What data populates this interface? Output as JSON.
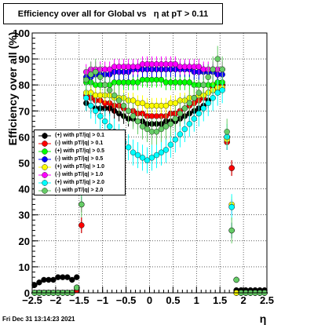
{
  "chart_data": {
    "type": "scatter",
    "title_prefix": "Efficiency over all for Global vs",
    "title_symbol": "η",
    "title_suffix": "at pT > 0.11",
    "xlabel": "η",
    "ylabel": "Efficiency over all (%)",
    "xlim": [
      -2.5,
      2.5
    ],
    "ylim": [
      0,
      100
    ],
    "xticks": [
      "−2.5",
      "−2",
      "−1.5",
      "−1",
      "−0.5",
      "0",
      "0.5",
      "1",
      "1.5",
      "2",
      "2.5"
    ],
    "yticks": [
      "0",
      "10",
      "20",
      "30",
      "40",
      "50",
      "60",
      "70",
      "80",
      "90",
      "100"
    ],
    "grid": true,
    "legend_position": "left-middle",
    "series": [
      {
        "name": "(+) with pT/|q| > 0.1",
        "color": "#000000",
        "y": [
          3,
          4,
          5,
          5,
          5,
          6,
          6,
          6,
          5,
          6,
          26,
          73,
          72,
          71,
          71,
          71,
          71,
          70,
          69,
          68,
          67,
          67,
          66,
          66,
          65,
          65,
          65,
          65,
          66,
          66,
          66,
          67,
          68,
          69,
          70,
          71,
          72,
          74,
          78,
          79,
          80,
          58,
          48,
          1,
          1,
          1,
          1,
          1,
          1,
          1
        ]
      },
      {
        "name": "(-) with pT/|q| > 0.1",
        "color": "#ff0000",
        "y": [
          0,
          0,
          0,
          0,
          0,
          0,
          0,
          0,
          0,
          1,
          26,
          76,
          75,
          74,
          74,
          73,
          73,
          72,
          72,
          71,
          70,
          70,
          69,
          69,
          68,
          68,
          68,
          68,
          68,
          69,
          69,
          70,
          71,
          72,
          73,
          74,
          75,
          77,
          79,
          80,
          80,
          58,
          48,
          0,
          0,
          0,
          0,
          0,
          0,
          0
        ]
      },
      {
        "name": "(+) with pT/|q| > 0.5",
        "color": "#00ff00",
        "y": [
          0,
          0,
          0,
          0,
          0,
          0,
          0,
          0,
          0,
          2,
          34,
          81,
          81,
          80,
          80,
          80,
          80,
          81,
          81,
          81,
          81,
          81,
          81,
          82,
          82,
          82,
          82,
          82,
          81,
          81,
          81,
          81,
          81,
          81,
          80,
          80,
          80,
          80,
          80,
          81,
          81,
          60,
          24,
          0,
          0,
          0,
          0,
          0,
          0,
          0
        ]
      },
      {
        "name": "(-) with pT/|q| > 0.5",
        "color": "#0000ff",
        "y": [
          0,
          0,
          0,
          0,
          0,
          0,
          0,
          0,
          0,
          2,
          34,
          83,
          83,
          84,
          84,
          84,
          84,
          85,
          85,
          85,
          85,
          86,
          86,
          86,
          86,
          86,
          86,
          86,
          86,
          86,
          86,
          86,
          86,
          86,
          85,
          85,
          85,
          85,
          85,
          84,
          84,
          60,
          24,
          0,
          0,
          0,
          0,
          0,
          0,
          0
        ]
      },
      {
        "name": "(+) with pT/|q| > 1.0",
        "color": "#ffff00",
        "y": [
          0,
          0,
          0,
          0,
          0,
          0,
          0,
          0,
          0,
          2,
          34,
          77,
          77,
          76,
          76,
          76,
          76,
          75,
          75,
          75,
          74,
          74,
          73,
          73,
          72,
          72,
          72,
          72,
          72,
          73,
          73,
          74,
          74,
          75,
          75,
          76,
          76,
          77,
          78,
          79,
          79,
          59,
          34,
          0,
          0,
          0,
          0,
          0,
          0,
          0
        ]
      },
      {
        "name": "(-) with pT/|q| > 1.0",
        "color": "#ff00ff",
        "y": [
          0,
          0,
          0,
          0,
          0,
          0,
          0,
          0,
          0,
          2,
          34,
          85,
          86,
          86,
          86,
          86,
          86,
          87,
          87,
          87,
          87,
          87,
          87,
          88,
          88,
          88,
          88,
          88,
          88,
          88,
          88,
          87,
          87,
          87,
          87,
          87,
          86,
          86,
          86,
          86,
          86,
          60,
          33,
          5,
          0,
          0,
          0,
          0,
          0,
          0
        ]
      },
      {
        "name": "(+) with pT/|q| > 2.0",
        "color": "#00ffff",
        "y": [
          0,
          0,
          0,
          0,
          0,
          0,
          0,
          0,
          0,
          2,
          40,
          75,
          72,
          70,
          68,
          66,
          64,
          62,
          60,
          58,
          56,
          54,
          53,
          52,
          51,
          52,
          53,
          54,
          55,
          57,
          59,
          61,
          63,
          65,
          67,
          69,
          71,
          73,
          75,
          77,
          78,
          60,
          33,
          5,
          0,
          0,
          0,
          0,
          0,
          0
        ]
      },
      {
        "name": "(-) with pT/|q| > 2.0",
        "color": "#66cc66",
        "y": [
          0,
          0,
          0,
          0,
          0,
          0,
          0,
          0,
          0,
          2,
          34,
          82,
          84,
          85,
          83,
          80,
          78,
          76,
          74,
          72,
          70,
          68,
          66,
          64,
          63,
          62,
          62,
          63,
          64,
          65,
          67,
          69,
          71,
          73,
          75,
          77,
          80,
          83,
          86,
          90,
          86,
          62,
          24,
          5,
          0,
          0,
          0,
          0,
          0,
          0
        ]
      }
    ]
  },
  "footer": {
    "timestamp": "Fri Dec 31 13:14:23 2021"
  }
}
